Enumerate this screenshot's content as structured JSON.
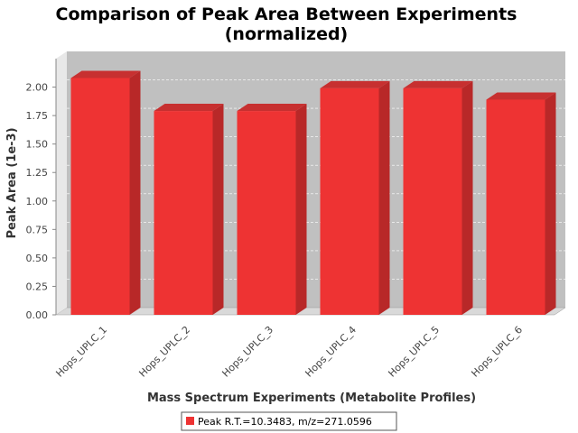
{
  "chart_data": {
    "type": "bar",
    "title_line1": "Comparison of Peak Area Between Experiments",
    "title_line2": "(normalized)",
    "xlabel": "Mass Spectrum Experiments (Metabolite Profiles)",
    "ylabel": "Peak Area (1e-3)",
    "categories": [
      "Hops_UPLC_1",
      "Hops_UPLC_2",
      "Hops_UPLC_3",
      "Hops_UPLC_4",
      "Hops_UPLC_5",
      "Hops_UPLC_6"
    ],
    "series": [
      {
        "name": "Peak R.T.=10.3483, m/z=271.0596",
        "values": [
          2.08,
          1.79,
          1.79,
          1.99,
          1.99,
          1.89
        ],
        "color": "#ee3333"
      }
    ],
    "yticks": [
      "0.00",
      "0.25",
      "0.50",
      "0.75",
      "1.00",
      "1.25",
      "1.50",
      "1.75",
      "2.00"
    ],
    "ylim": [
      0,
      2.25
    ],
    "grid": true,
    "legend_position": "bottom",
    "plot_background": "#c0c0c0"
  }
}
